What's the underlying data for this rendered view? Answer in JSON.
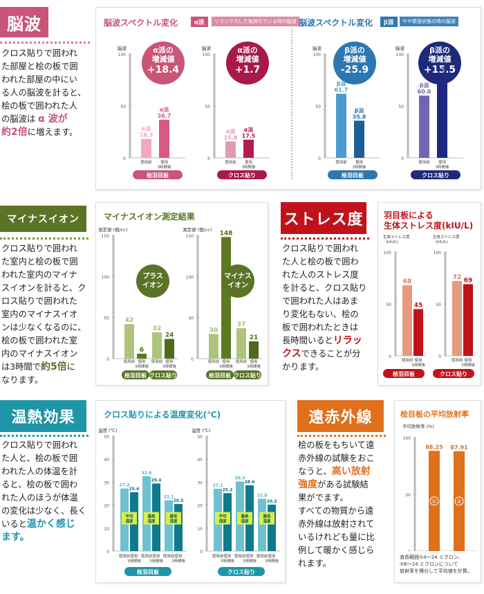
{
  "colors": {
    "alpha": "#d16a8a",
    "beta": "#2c77b1",
    "green": "#6e8b2a",
    "red": "#c1121c",
    "teal": "#1e96a8",
    "orange": "#e0701c"
  },
  "brainwave": {
    "heading": "脳波",
    "text": [
      "クロス貼りで囲われ",
      "た部屋と桧の板で囲",
      "われた部屋の中にい",
      "る人の脳波を計ると、",
      "桧の板で囲われた人",
      "の脳波は "
    ],
    "em1": "α 波が",
    "em2": "約2倍",
    "tail": "に増えます。",
    "alpha_title": "脳波スペクトル変化",
    "alpha_tag": "α派",
    "alpha_sub": "リラックスした気持ちでいる時の脳波",
    "beta_title": "脳波スペクトル変化",
    "beta_tag": "β派",
    "beta_sub": "やや緊張状態の時の脳波",
    "bubbles": [
      {
        "l1": "α派の",
        "l2": "増減値",
        "v": "+18.4"
      },
      {
        "l1": "α派の",
        "l2": "増減値",
        "v": "+1.7"
      },
      {
        "l1": "β派の",
        "l2": "増減値",
        "v": "-25.9"
      },
      {
        "l1": "β派の",
        "l2": "増減値",
        "v": "+15.5"
      }
    ]
  },
  "ion": {
    "heading": "マイナスイオン",
    "text": [
      "クロス貼りで囲われ",
      "た室内と桧の板で囲",
      "われた室内のマイナ",
      "スイオンを計ると、ク",
      "ロス貼りで囲われた",
      "室内のマイナスイオ",
      "ンは少なくなるのに、",
      "桧の板で囲われた室",
      "内のマイナスイオン",
      "は3時間で"
    ],
    "em": "約5倍",
    "tail1": "に",
    "tail2": "なります。",
    "chart_title": "マイナスイオン測定結果",
    "bubble_plus": [
      "プラス",
      "イオン"
    ],
    "bubble_minus": [
      "マイナス",
      "イオン"
    ]
  },
  "stress": {
    "heading": "ストレス度",
    "text": [
      "クロス貼りで囲われ",
      "た人と桧の板で囲わ",
      "れた人のストレス度",
      "を計ると、クロス貼り",
      "で囲われた人はあま",
      "り変化もない、桧の",
      "板で囲われたときは",
      "長時間いると"
    ],
    "em1": "リラッ",
    "em2": "クス",
    "tail1": "できることが分",
    "tail2": "かります。",
    "chart_title1": "羽目板による",
    "chart_title2": "生体ストレス度(kIU/L)"
  },
  "thermal": {
    "heading": "温熱効果",
    "text": [
      "クロス貼りで囲われ",
      "た人と、桧の板で囲",
      "われた人の体温を計",
      "ると、桧の板で囲わ",
      "れた人のほうが体温",
      "の変化は少なく、長く",
      "いると"
    ],
    "em1": "温かく感じ",
    "em2": "ます。",
    "chart_title": "クロス貼りによる温度変化(℃)"
  },
  "far_ir": {
    "heading": "遠赤外線",
    "text1": [
      "桧の板をもちいて遠",
      "赤外線の試験をおこ",
      "なうと、"
    ],
    "em1": "高い放射",
    "em2": "強度",
    "mid": "がある試験結",
    "text2": [
      "果がでます。",
      "すべての物質から遠",
      "赤外線は放射されて",
      "いるけれども量に比",
      "例して暖かく感じら",
      "れます。"
    ],
    "chart_title": "桧目板の平均放射率",
    "note": [
      "波長範囲①4〜24 ミクロン、",
      "②6〜14 ミクロンについて",
      "放射率を積分して平均値を計算。"
    ]
  },
  "chart_data": [
    {
      "type": "bar",
      "id": "alpha-hinoki",
      "ylabel": "脳波",
      "ylim": [
        0,
        100
      ],
      "yticks": [
        0,
        50,
        100
      ],
      "categories": [
        "使用前",
        "使用 3時間後"
      ],
      "values": [
        18.3,
        36.7
      ],
      "label_prefix": "α派",
      "footer": "桧羽目板"
    },
    {
      "type": "bar",
      "id": "alpha-cloth",
      "ylabel": "脳波",
      "ylim": [
        0,
        100
      ],
      "yticks": [
        0,
        50,
        100
      ],
      "categories": [
        "使用前",
        "使用 3時間後"
      ],
      "values": [
        15.8,
        17.5
      ],
      "label_prefix": "α派",
      "footer": "クロス貼り"
    },
    {
      "type": "bar",
      "id": "beta-hinoki",
      "ylabel": "脳波",
      "ylim": [
        0,
        100
      ],
      "yticks": [
        0,
        50,
        100
      ],
      "categories": [
        "使用前",
        "使用 3時間後"
      ],
      "values": [
        61.7,
        35.8
      ],
      "label_prefix": "β派",
      "footer": "桧羽目板"
    },
    {
      "type": "bar",
      "id": "beta-cloth",
      "ylabel": "脳波",
      "ylim": [
        0,
        100
      ],
      "yticks": [
        0,
        50,
        100
      ],
      "categories": [
        "使用前",
        "使用 3時間後"
      ],
      "values": [
        60.0,
        75.5
      ],
      "label_prefix": "β派",
      "footer": "クロス貼り"
    },
    {
      "type": "bar",
      "id": "ion-plus",
      "ylabel": "測定値 (個/cc)",
      "ylim": [
        0,
        150
      ],
      "yticks": [
        0,
        50,
        100,
        150
      ],
      "groups": [
        "桧羽目板",
        "クロス貼り"
      ],
      "categories": [
        "使用前",
        "使用 3時間後"
      ],
      "series": [
        {
          "values": [
            42,
            6
          ]
        },
        {
          "values": [
            32,
            24
          ]
        }
      ]
    },
    {
      "type": "bar",
      "id": "ion-minus",
      "ylabel": "測定値 (個/cc)",
      "ylim": [
        0,
        150
      ],
      "yticks": [
        0,
        50,
        100,
        150
      ],
      "groups": [
        "桧羽目板",
        "クロス貼り"
      ],
      "categories": [
        "使用前",
        "使用 3時間後"
      ],
      "series": [
        {
          "values": [
            30,
            148
          ]
        },
        {
          "values": [
            37,
            21
          ]
        }
      ]
    },
    {
      "type": "bar",
      "id": "stress-hinoki",
      "ylabel": "生体ストレス度 (kIU/L)",
      "ylim": [
        0,
        100
      ],
      "yticks": [
        0,
        50,
        100
      ],
      "categories": [
        "使用前",
        "使用 3時間後"
      ],
      "values": [
        68,
        45
      ],
      "footer": "桧羽目板"
    },
    {
      "type": "bar",
      "id": "stress-cloth",
      "ylabel": "生体ストレス度 (kIU/L)",
      "ylim": [
        0,
        100
      ],
      "yticks": [
        0,
        50,
        100
      ],
      "categories": [
        "使用前",
        "使用 3時間後"
      ],
      "values": [
        72,
        69
      ],
      "footer": "クロス貼り"
    },
    {
      "type": "bar",
      "id": "temp-hinoki",
      "ylabel": "温度 (℃)",
      "ylim": [
        0,
        50
      ],
      "yticks": [
        0,
        10,
        20,
        30,
        40,
        50
      ],
      "groups": [
        "平均温度",
        "最高温度",
        "最低温度"
      ],
      "categories": [
        "使用前",
        "使用 3時間後"
      ],
      "series": [
        {
          "values": [
            27.2,
            25.6
          ]
        },
        {
          "values": [
            32.6,
            29.4
          ]
        },
        {
          "values": [
            22.1,
            20.5
          ]
        }
      ],
      "footer": "桧羽目板"
    },
    {
      "type": "bar",
      "id": "temp-cloth",
      "ylabel": "温度 (℃)",
      "ylim": [
        0,
        50
      ],
      "yticks": [
        0,
        10,
        20,
        30,
        40,
        50
      ],
      "groups": [
        "平均温度",
        "最高温度",
        "最低温度"
      ],
      "categories": [
        "使用前",
        "使用 3時間後"
      ],
      "series": [
        {
          "values": [
            27.1,
            25.2
          ]
        },
        {
          "values": [
            30.3,
            28.6
          ]
        },
        {
          "values": [
            22.8,
            20.2
          ]
        }
      ],
      "footer": "クロス貼り"
    },
    {
      "type": "bar",
      "id": "emissivity",
      "ylabel": "平均放射率 (%)",
      "ylim": [
        0,
        100
      ],
      "yticks": [
        0,
        50,
        100
      ],
      "categories": [
        "①",
        "②"
      ],
      "values": [
        88.25,
        87.91
      ]
    }
  ]
}
